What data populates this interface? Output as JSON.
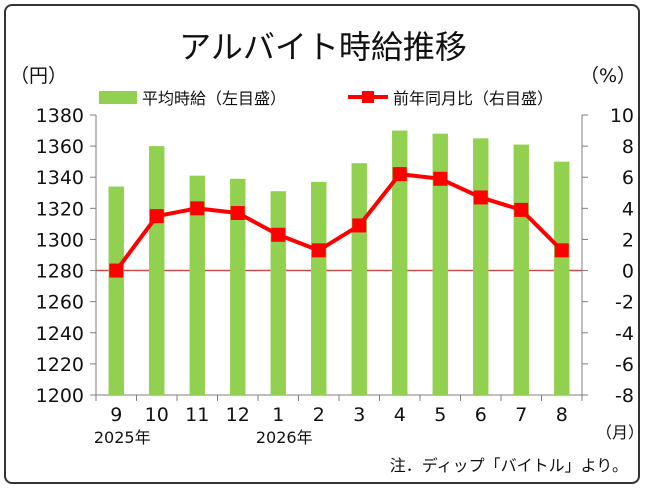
{
  "chart_data": {
    "type": "bar",
    "title": "アルバイト時給推移",
    "left_unit": "（円）",
    "right_unit": "（%）",
    "x_unit": "（月）",
    "note": "注．ディップ「バイトル」より。",
    "categories": [
      "9",
      "10",
      "11",
      "12",
      "1",
      "2",
      "3",
      "4",
      "5",
      "6",
      "7",
      "8"
    ],
    "year_labels": [
      {
        "label": "2025年",
        "category": "9"
      },
      {
        "label": "2026年",
        "category": "1"
      }
    ],
    "y_left": {
      "min": 1200,
      "max": 1380,
      "step": 20
    },
    "y_right": {
      "min": -8,
      "max": 10,
      "step": 2
    },
    "series": [
      {
        "name": "平均時給（左目盛）",
        "type": "bar",
        "axis": "left",
        "color": "#92d050",
        "values": [
          1334,
          1360,
          1341,
          1339,
          1331,
          1337,
          1349,
          1370,
          1368,
          1365,
          1361,
          1350
        ]
      },
      {
        "name": "前年同月比（右目盛）",
        "type": "line",
        "axis": "right",
        "color": "#ff0000",
        "values": [
          0.0,
          3.5,
          4.0,
          3.7,
          2.3,
          1.3,
          2.9,
          6.2,
          5.9,
          4.7,
          3.9,
          1.3
        ]
      }
    ],
    "zero_line_color": "#c0504d",
    "grid": false
  }
}
